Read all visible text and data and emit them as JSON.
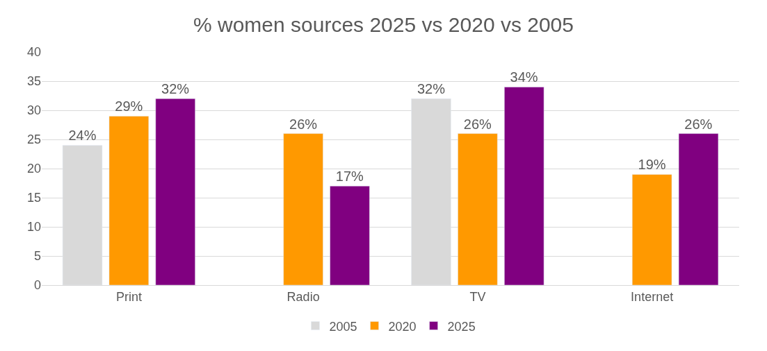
{
  "chart_data": {
    "type": "bar",
    "title": "% women sources 2025 vs 2020 vs 2005",
    "categories": [
      "Print",
      "Radio",
      "TV",
      "Internet"
    ],
    "series": [
      {
        "name": "2005",
        "color": "#d9d9d9",
        "values": [
          24,
          null,
          32,
          null
        ],
        "value_labels": [
          "24%",
          null,
          "32%",
          null
        ]
      },
      {
        "name": "2020",
        "color": "#ff9900",
        "values": [
          29,
          26,
          26,
          19
        ],
        "value_labels": [
          "29%",
          "26%",
          "26%",
          "19%"
        ]
      },
      {
        "name": "2025",
        "color": "#800080",
        "values": [
          32,
          17,
          34,
          26
        ],
        "value_labels": [
          "32%",
          "17%",
          "34%",
          "26%"
        ]
      }
    ],
    "ylim": [
      0,
      40
    ],
    "yticks": [
      0,
      5,
      10,
      15,
      20,
      25,
      30,
      35,
      40
    ],
    "grid": "y",
    "legend": "bottom"
  }
}
